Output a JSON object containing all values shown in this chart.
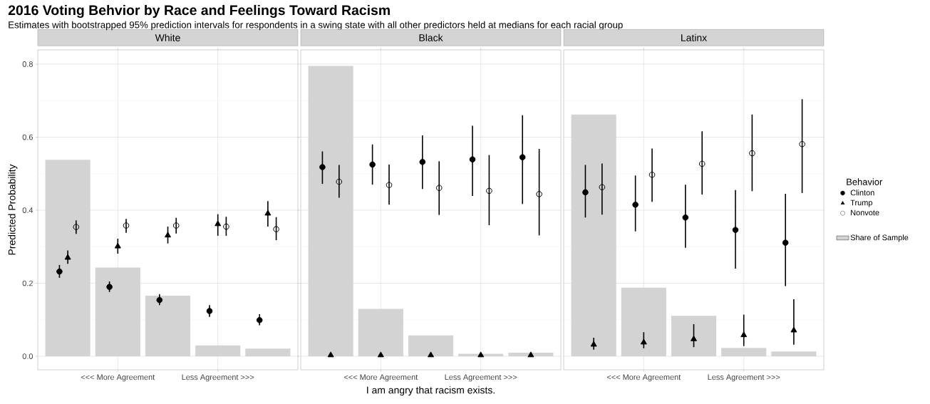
{
  "chart_data": [
    {
      "type": "bar",
      "title": "White",
      "annotations": [
        "2016 Voting Behvior by Race and Feelings Toward Racism",
        "Estimates with bootstrapped 95% prediction intervals for respondents in a swing state with all other predictors held at medians for each racial group"
      ],
      "ylabel": "Predicted Probability",
      "categories": [
        null,
        "<<< More Agreement",
        null,
        "Less Agreement >>>",
        null
      ],
      "ylim": [
        -0.037,
        0.839
      ],
      "yticks": [
        {
          "value": 0,
          "label": "0.0"
        },
        {
          "value": 0.2,
          "label": "0.2"
        },
        {
          "value": 0.4,
          "label": "0.4"
        },
        {
          "value": 0.6,
          "label": "0.6"
        },
        {
          "value": 0.8,
          "label": "0.8"
        }
      ],
      "grid": true,
      "series": [
        {
          "color": "#d3d3d3",
          "values": [
            0.538,
            0.243,
            0.166,
            0.03,
            0.021
          ]
        },
        {
          "type": "scatter",
          "marker": "circle",
          "color": "#000000",
          "values": [
            0.232,
            0.19,
            0.154,
            0.124,
            0.099
          ],
          "errors": [
            [
              0.215,
              0.25
            ],
            [
              0.176,
              0.205
            ],
            [
              0.14,
              0.17
            ],
            [
              0.108,
              0.14
            ],
            [
              0.085,
              0.115
            ]
          ]
        },
        {
          "type": "scatter",
          "marker": "triangle",
          "color": "#000000",
          "values": [
            0.27,
            0.301,
            0.331,
            0.362,
            0.391
          ],
          "errors": [
            [
              0.253,
              0.29
            ],
            [
              0.281,
              0.322
            ],
            [
              0.309,
              0.355
            ],
            [
              0.33,
              0.389
            ],
            [
              0.355,
              0.425
            ]
          ]
        },
        {
          "type": "scatter",
          "marker": "open circle",
          "color": "#000000",
          "values": [
            0.354,
            0.358,
            0.358,
            0.355,
            0.348
          ],
          "errors": [
            [
              0.335,
              0.372
            ],
            [
              0.338,
              0.376
            ],
            [
              0.336,
              0.379
            ],
            [
              0.33,
              0.382
            ],
            [
              0.318,
              0.381
            ]
          ]
        }
      ]
    },
    {
      "type": "bar",
      "title": "Black",
      "xlabel": "I am angry that racism exists.",
      "categories": [
        null,
        "<<< More Agreement",
        null,
        "Less Agreement >>>",
        null
      ],
      "ylim": [
        -0.037,
        0.839
      ],
      "yticks": [
        0,
        0.2,
        0.4,
        0.6,
        0.8
      ],
      "grid": true,
      "tick_labels": "x",
      "series": [
        {
          "color": "#d3d3d3",
          "values": [
            0.795,
            0.13,
            0.057,
            0.007,
            0.01
          ]
        },
        {
          "type": "scatter",
          "marker": "circle",
          "color": "#000000",
          "values": [
            0.518,
            0.525,
            0.532,
            0.539,
            0.545
          ],
          "errors": [
            [
              0.472,
              0.561
            ],
            [
              0.47,
              0.58
            ],
            [
              0.458,
              0.605
            ],
            [
              0.439,
              0.631
            ],
            [
              0.417,
              0.66
            ]
          ]
        },
        {
          "type": "scatter",
          "marker": "triangle",
          "color": "#000000",
          "values": [
            0.003,
            0.003,
            0.003,
            0.003,
            0.003
          ]
        },
        {
          "type": "scatter",
          "marker": "open circle",
          "color": "#000000",
          "values": [
            0.478,
            0.469,
            0.461,
            0.453,
            0.444
          ],
          "errors": [
            [
              0.434,
              0.524
            ],
            [
              0.415,
              0.525
            ],
            [
              0.387,
              0.534
            ],
            [
              0.359,
              0.551
            ],
            [
              0.331,
              0.568
            ]
          ]
        }
      ]
    },
    {
      "type": "bar",
      "title": "Latinx",
      "legend": "right",
      "legend_title": "Behavior",
      "categories": [
        null,
        "<<< More Agreement",
        null,
        "Less Agreement >>>",
        null
      ],
      "ylim": [
        -0.037,
        0.839
      ],
      "yticks": [
        0,
        0.2,
        0.4,
        0.6,
        0.8
      ],
      "grid": true,
      "tick_labels": "x",
      "series": [
        {
          "name": "Share of Sample",
          "color": "#d3d3d3",
          "values": [
            0.662,
            0.188,
            0.111,
            0.023,
            0.013
          ]
        },
        {
          "name": "Clinton",
          "type": "scatter",
          "marker": "circle",
          "color": "#000000",
          "values": [
            0.449,
            0.415,
            0.38,
            0.346,
            0.311
          ],
          "errors": [
            [
              0.38,
              0.524
            ],
            [
              0.342,
              0.495
            ],
            [
              0.297,
              0.47
            ],
            [
              0.24,
              0.455
            ],
            [
              0.192,
              0.445
            ]
          ]
        },
        {
          "name": "Trump",
          "type": "scatter",
          "marker": "triangle",
          "color": "#000000",
          "values": [
            0.032,
            0.038,
            0.047,
            0.058,
            0.071
          ],
          "errors": [
            [
              0.018,
              0.051
            ],
            [
              0.022,
              0.066
            ],
            [
              0.025,
              0.088
            ],
            [
              0.028,
              0.114
            ],
            [
              0.032,
              0.156
            ]
          ]
        },
        {
          "name": "Nonvote",
          "type": "scatter",
          "marker": "open circle",
          "color": "#000000",
          "values": [
            0.463,
            0.497,
            0.527,
            0.556,
            0.581
          ],
          "errors": [
            [
              0.388,
              0.528
            ],
            [
              0.423,
              0.569
            ],
            [
              0.443,
              0.616
            ],
            [
              0.452,
              0.662
            ],
            [
              0.447,
              0.704
            ]
          ]
        }
      ]
    }
  ]
}
